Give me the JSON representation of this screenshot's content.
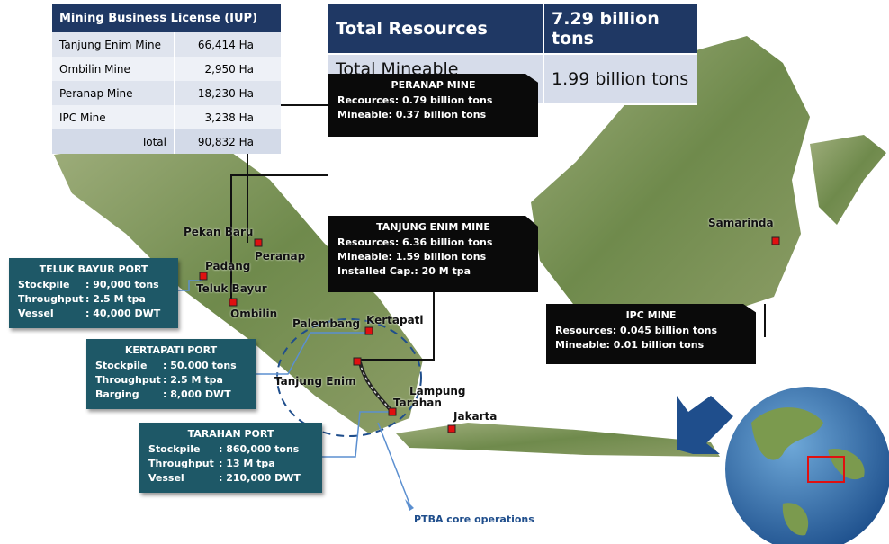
{
  "license_table": {
    "title": "Mining Business License (IUP)",
    "rows": [
      [
        "Tanjung Enim Mine",
        "66,414 Ha"
      ],
      [
        "Ombilin Mine",
        "2,950 Ha"
      ],
      [
        "Peranap Mine",
        "18,230 Ha"
      ],
      [
        "IPC Mine",
        "3,238 Ha"
      ],
      [
        "Total",
        "90,832 Ha"
      ]
    ]
  },
  "totals_table": {
    "rows": [
      [
        "Total Resources",
        "7.29 billion tons"
      ],
      [
        "Total Mineable Reserves",
        "1.99 billion tons"
      ]
    ]
  },
  "mine_boxes": [
    {
      "title": "PERANAP  MINE",
      "rows": [
        [
          "Recources",
          ": 0.79 billion tons"
        ],
        [
          "Mineable",
          ": 0.37 billion tons"
        ]
      ]
    },
    {
      "title": "TANJUNG ENIM  MINE",
      "rows": [
        [
          "Resources",
          ": 6.36 billion tons"
        ],
        [
          "Mineable",
          ": 1.59 billion tons"
        ],
        [
          "Installed Cap.",
          ": 20 M tpa"
        ]
      ]
    },
    {
      "title": "IPC MINE",
      "rows": [
        [
          "Resources",
          ": 0.045 billion tons"
        ],
        [
          "Mineable",
          ": 0.01 billion tons"
        ]
      ]
    }
  ],
  "port_boxes": [
    {
      "title": "TELUK BAYUR PORT",
      "rows": [
        [
          "Stockpile",
          ": 90,000 tons"
        ],
        [
          "Throughput",
          ": 2.5 M tpa"
        ],
        [
          "Vessel",
          ": 40,000 DWT"
        ]
      ]
    },
    {
      "title": "KERTAPATI  PORT",
      "rows": [
        [
          "Stockpile",
          ": 50.000 tons"
        ],
        [
          "Throughput",
          ": 2.5 M tpa"
        ],
        [
          "Barging",
          ": 8,000 DWT"
        ]
      ]
    },
    {
      "title": "TARAHAN PORT",
      "rows": [
        [
          "Stockpile",
          ": 860,000 tons"
        ],
        [
          "Throughput",
          ": 13 M tpa"
        ],
        [
          "Vessel",
          ": 210,000 DWT"
        ]
      ]
    }
  ],
  "places": [
    "Pekan Baru",
    "Peranap",
    "Padang",
    "Teluk Bayur",
    "Ombilin",
    "Palembang",
    "Kertapati",
    "Tanjung Enim",
    "Lampung",
    "Tarahan",
    "Jakarta",
    "Samarinda"
  ],
  "caption": "PTBA core operations"
}
